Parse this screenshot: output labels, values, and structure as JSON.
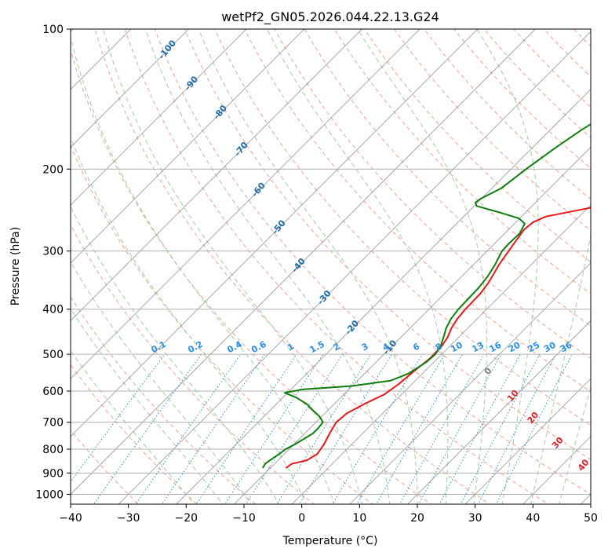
{
  "chart_data": {
    "type": "line",
    "subtype": "skew-T log-P sounding diagram",
    "title": "wetPf2_GN05.2026.044.22.13.G24",
    "xlabel": "Temperature (°C)",
    "ylabel": "Pressure (hPa)",
    "xlim": [
      -40,
      50
    ],
    "ylim": [
      1050,
      100
    ],
    "y_scale": "log",
    "x_ticks": [
      -40,
      -30,
      -20,
      -10,
      0,
      10,
      20,
      30,
      40,
      50
    ],
    "y_ticks": [
      100,
      200,
      300,
      400,
      500,
      600,
      700,
      800,
      900,
      1000
    ],
    "grid": true,
    "series": [
      {
        "color": "#e8191a",
        "points": [
          [
            878,
            -7.3
          ],
          [
            860,
            -7.0
          ],
          [
            845,
            -5.0
          ],
          [
            820,
            -4.3
          ],
          [
            780,
            -4.8
          ],
          [
            740,
            -5.7
          ],
          [
            700,
            -6.5
          ],
          [
            670,
            -6.2
          ],
          [
            640,
            -4.8
          ],
          [
            610,
            -3.0
          ],
          [
            580,
            -2.3
          ],
          [
            540,
            -1.8
          ],
          [
            510,
            -1.3
          ],
          [
            480,
            -1.4
          ],
          [
            460,
            -1.9
          ],
          [
            440,
            -2.8
          ],
          [
            420,
            -3.4
          ],
          [
            400,
            -3.7
          ],
          [
            370,
            -3.8
          ],
          [
            350,
            -4.3
          ],
          [
            320,
            -5.6
          ],
          [
            290,
            -6.6
          ],
          [
            270,
            -7.3
          ],
          [
            260,
            -7.0
          ],
          [
            253,
            -5.8
          ],
          [
            248,
            -3.0
          ],
          [
            242,
            0.5
          ],
          [
            236,
            3.5
          ],
          [
            230,
            5.8
          ],
          [
            220,
            8.4
          ],
          [
            210,
            10.8
          ],
          [
            195,
            14.0
          ],
          [
            180,
            16.7
          ],
          [
            165,
            19.0
          ],
          [
            152,
            22.5
          ],
          [
            140,
            26.6
          ],
          [
            130,
            29.3
          ],
          [
            120,
            33.2
          ],
          [
            112,
            35.8
          ],
          [
            106,
            37.8
          ],
          [
            100,
            39.8
          ]
        ]
      },
      {
        "color": "#0e7d0e",
        "points": [
          [
            878,
            -11.3
          ],
          [
            860,
            -11.6
          ],
          [
            840,
            -11.3
          ],
          [
            820,
            -10.9
          ],
          [
            800,
            -10.6
          ],
          [
            780,
            -9.8
          ],
          [
            760,
            -9.2
          ],
          [
            740,
            -8.6
          ],
          [
            720,
            -8.6
          ],
          [
            700,
            -8.8
          ],
          [
            680,
            -10.4
          ],
          [
            660,
            -12.6
          ],
          [
            640,
            -14.7
          ],
          [
            620,
            -17.6
          ],
          [
            605,
            -20.5
          ],
          [
            595,
            -18.0
          ],
          [
            585,
            -10.0
          ],
          [
            570,
            -4.3
          ],
          [
            550,
            -2.4
          ],
          [
            520,
            -1.3
          ],
          [
            500,
            -1.1
          ],
          [
            480,
            -1.6
          ],
          [
            460,
            -2.6
          ],
          [
            440,
            -3.7
          ],
          [
            420,
            -4.5
          ],
          [
            400,
            -4.9
          ],
          [
            380,
            -5.0
          ],
          [
            360,
            -5.1
          ],
          [
            340,
            -5.5
          ],
          [
            320,
            -6.3
          ],
          [
            300,
            -7.4
          ],
          [
            290,
            -7.5
          ],
          [
            275,
            -7.4
          ],
          [
            262,
            -8.2
          ],
          [
            255,
            -10.2
          ],
          [
            248,
            -14.4
          ],
          [
            240,
            -19.6
          ],
          [
            236,
            -20.4
          ],
          [
            232,
            -20.2
          ],
          [
            220,
            -18.4
          ],
          [
            200,
            -17.4
          ],
          [
            180,
            -16.0
          ],
          [
            165,
            -14.6
          ],
          [
            150,
            -12.6
          ],
          [
            138,
            -10.8
          ],
          [
            125,
            -8.5
          ],
          [
            115,
            -5.8
          ],
          [
            108,
            -3.2
          ],
          [
            102,
            -0.7
          ],
          [
            100,
            0.0
          ]
        ]
      }
    ],
    "reference_lines": {
      "dry_adiabats_labels": [
        "-100",
        "-90",
        "-80",
        "-70",
        "-60",
        "-50",
        "-40",
        "-30",
        "-20",
        "-10"
      ],
      "dry_adiabats_label_colors": [
        "#1d6aa8"
      ],
      "mixing_ratio_labels": [
        "0.1",
        "0.2",
        "0.4",
        "0.6",
        "1",
        "1.5",
        "2",
        "3",
        "4",
        "6",
        "8",
        "10",
        "13",
        "16",
        "20",
        "25",
        "30",
        "36"
      ],
      "mixing_ratio_label_color": "#2a8ee6",
      "moist_adiabat_labels": [
        "0",
        "10",
        "20",
        "30",
        "40"
      ],
      "moist_adiabat_label_colors": [
        "#808080",
        "#d62728",
        "#d62728",
        "#d62728",
        "#d62728"
      ]
    },
    "colors": {
      "temperature_line": "#e8191a",
      "dewpoint_line": "#0e7d0e",
      "isotherm": "#808080",
      "dry_adiabat": "#f5a28c",
      "moist_adiabat": "#9ecf9e",
      "mixing_ratio": "#2a8ee6",
      "grid": "#b0b0b0"
    }
  }
}
